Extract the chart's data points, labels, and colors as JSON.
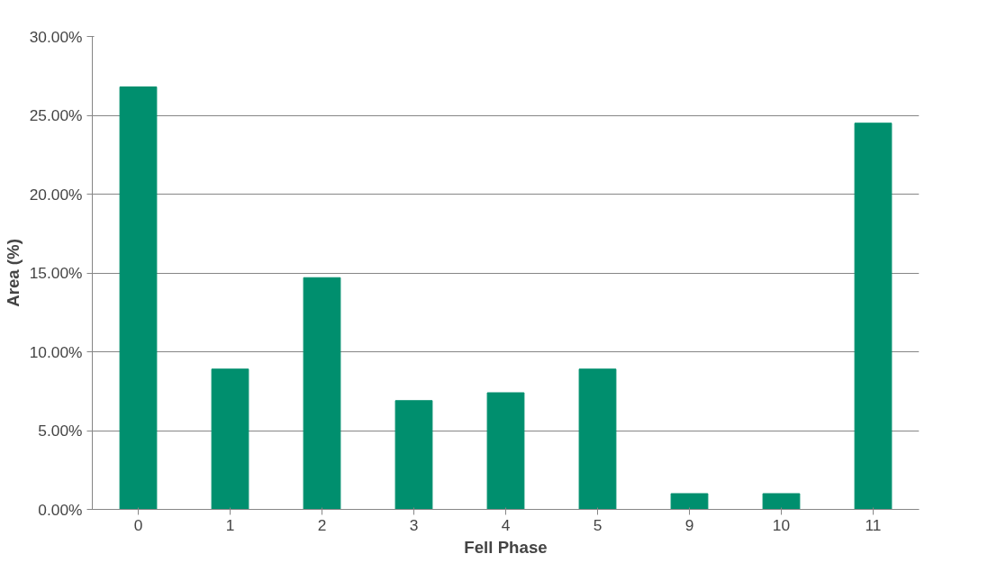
{
  "chart_data": {
    "type": "bar",
    "xlabel": "Fell Phase",
    "ylabel": "Area (%)",
    "categories": [
      "0",
      "1",
      "2",
      "3",
      "4",
      "5",
      "9",
      "10",
      "11"
    ],
    "values": [
      26.8,
      8.9,
      14.7,
      6.9,
      7.4,
      8.9,
      1.0,
      1.0,
      24.5
    ],
    "color": "#008f6e",
    "ylim": [
      0,
      30
    ],
    "yticks": [
      {
        "value": 0,
        "label": "0.00%"
      },
      {
        "value": 5,
        "label": "5.00%"
      },
      {
        "value": 10,
        "label": "10.00%"
      },
      {
        "value": 15,
        "label": "15.00%"
      },
      {
        "value": 20,
        "label": "20.00%"
      },
      {
        "value": 25,
        "label": "25.00%"
      },
      {
        "value": 30,
        "label": "30.00%"
      }
    ],
    "grid": "y"
  }
}
